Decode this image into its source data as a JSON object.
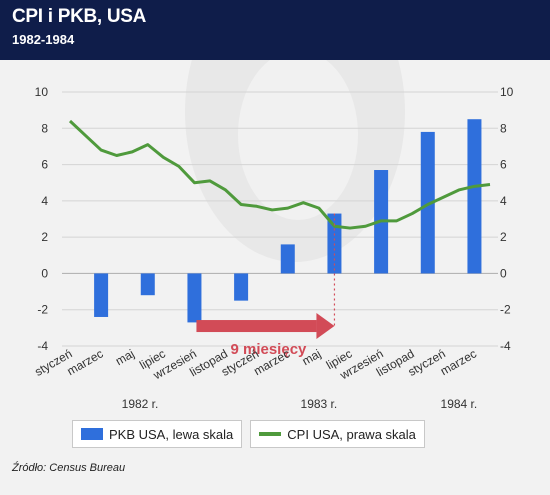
{
  "header": {
    "title": "CPI i PKB, USA",
    "subtitle": "1982-1984"
  },
  "legend": {
    "bar_label": "PKB USA, lewa skala",
    "line_label": "CPI USA, prawa skala"
  },
  "source": "Źródło: Census Bureau",
  "annotation": "9 miesięcy",
  "colors": {
    "bar": "#2f6fdc",
    "line": "#4f9a3c",
    "arrow": "#d24b57",
    "header": "#0f1d4a"
  },
  "chart_data": {
    "type": "bar",
    "title": "CPI i PKB, USA",
    "subtitle": "1982-1984",
    "x": [
      "1982-01",
      "1982-02",
      "1982-03",
      "1982-04",
      "1982-05",
      "1982-06",
      "1982-07",
      "1982-08",
      "1982-09",
      "1982-10",
      "1982-11",
      "1982-12",
      "1983-01",
      "1983-02",
      "1983-03",
      "1983-04",
      "1983-05",
      "1983-06",
      "1983-07",
      "1983-08",
      "1983-09",
      "1983-10",
      "1983-11",
      "1983-12",
      "1984-01",
      "1984-02",
      "1984-03",
      "1984-04"
    ],
    "tick_labels": [
      "styczeń",
      "marzec",
      "maj",
      "lipiec",
      "wrzesień",
      "listopad",
      "styczeń",
      "marzec",
      "maj",
      "lipiec",
      "wrzesień",
      "listopad",
      "styczeń",
      "marzec"
    ],
    "year_labels": [
      "1982 r.",
      "1983 r.",
      "1984 r."
    ],
    "ylim_left": [
      -4,
      10
    ],
    "ylim_right": [
      -4,
      10
    ],
    "yticks": [
      -4,
      -2,
      0,
      2,
      4,
      6,
      8,
      10
    ],
    "grid": "horizontal",
    "legend_position": "bottom",
    "series": [
      {
        "name": "PKB USA, lewa skala",
        "type": "bar",
        "axis": "left",
        "points": [
          {
            "x": "1982-03",
            "y": -2.4
          },
          {
            "x": "1982-06",
            "y": -1.2
          },
          {
            "x": "1982-09",
            "y": -2.7
          },
          {
            "x": "1982-12",
            "y": -1.5
          },
          {
            "x": "1983-03",
            "y": 1.6
          },
          {
            "x": "1983-06",
            "y": 3.3
          },
          {
            "x": "1983-09",
            "y": 5.7
          },
          {
            "x": "1983-12",
            "y": 7.8
          },
          {
            "x": "1984-03",
            "y": 8.5
          }
        ]
      },
      {
        "name": "CPI USA, prawa skala",
        "type": "line",
        "axis": "right",
        "values": [
          8.4,
          7.6,
          6.8,
          6.5,
          6.7,
          7.1,
          6.4,
          5.9,
          5.0,
          5.1,
          4.6,
          3.8,
          3.7,
          3.5,
          3.6,
          3.9,
          3.6,
          2.6,
          2.5,
          2.6,
          2.9,
          2.9,
          3.3,
          3.8,
          4.2,
          4.6,
          4.8,
          4.9
        ]
      }
    ],
    "annotations": [
      {
        "text": "9 miesięcy",
        "from": "1982-09",
        "to": "1983-06"
      }
    ]
  }
}
